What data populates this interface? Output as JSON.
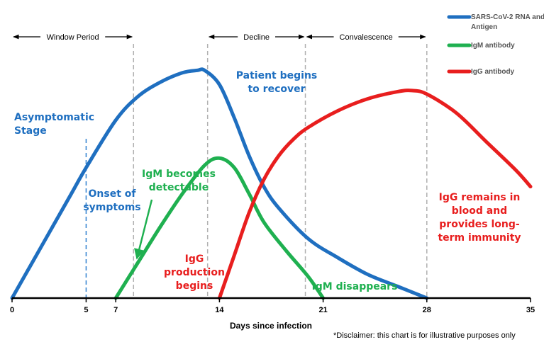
{
  "chart_data": {
    "type": "line",
    "xlabel": "Days since infection",
    "xlim": [
      0,
      35
    ],
    "ylim": [
      0,
      100
    ],
    "xticks": [
      "0",
      "5",
      "7",
      "14",
      "21",
      "28",
      "35"
    ],
    "grid": false,
    "legend_position": "top-right",
    "series": [
      {
        "name": "SARS-CoV-2 RNA and Antigen",
        "color": "#1f6fc0",
        "x": [
          0,
          2,
          4,
          5,
          7,
          8.5,
          10,
          11.5,
          12.5,
          13,
          14,
          15,
          16,
          17,
          18,
          20,
          22,
          24,
          26,
          28
        ],
        "y": [
          0,
          22,
          44,
          55,
          75,
          85,
          91,
          95,
          96,
          96,
          90,
          76,
          60,
          47,
          38,
          25,
          17,
          10,
          5,
          0
        ]
      },
      {
        "name": "IgM antibody",
        "color": "#1fb050",
        "x": [
          7,
          8.5,
          10,
          11.5,
          13,
          14,
          15,
          16,
          17,
          18.5,
          20,
          21
        ],
        "y": [
          0,
          15,
          30,
          44,
          56,
          59,
          55,
          44,
          32,
          20,
          9,
          0
        ]
      },
      {
        "name": "IgG antibody",
        "color": "#e81e1e",
        "x": [
          14,
          15,
          16,
          17,
          18,
          19,
          20,
          22,
          24,
          26,
          27,
          28,
          30,
          32,
          34,
          35
        ],
        "y": [
          0,
          18,
          36,
          50,
          60,
          67,
          72,
          79,
          84,
          87,
          87.5,
          86,
          78,
          66,
          54,
          47
        ]
      }
    ],
    "vlines": [
      {
        "x": 5,
        "color": "#2e7fd0",
        "style": "dashed"
      },
      {
        "x": 8.2,
        "color": "#b0b0b0",
        "style": "dashed"
      },
      {
        "x": 13.2,
        "color": "#b0b0b0",
        "style": "dashed"
      },
      {
        "x": 19.8,
        "color": "#b0b0b0",
        "style": "dashed"
      },
      {
        "x": 28,
        "color": "#b0b0b0",
        "style": "dashed"
      }
    ],
    "periods": [
      {
        "label": "Window Period",
        "x_start": 0,
        "x_end": 8.2
      },
      {
        "label": "Decline",
        "x_start": 13.2,
        "x_end": 19.8
      },
      {
        "label": "Convalescence",
        "x_start": 19.8,
        "x_end": 28
      }
    ],
    "annotations": [
      {
        "lines": [
          "Asymptomatic",
          "Stage"
        ],
        "color": "#1f6fc0"
      },
      {
        "lines": [
          "Onset of",
          "symptoms"
        ],
        "color": "#1f6fc0"
      },
      {
        "lines": [
          "Patient begins",
          "to recover"
        ],
        "color": "#1f6fc0"
      },
      {
        "lines": [
          "IgM becomes",
          "detectable"
        ],
        "color": "#1fb050"
      },
      {
        "lines": [
          "IgG",
          "production",
          "begins"
        ],
        "color": "#e81e1e"
      },
      {
        "lines": [
          "IgM disappears"
        ],
        "color": "#1fb050"
      },
      {
        "lines": [
          "IgG remains in",
          "blood and",
          "provides long-",
          "term immunity"
        ],
        "color": "#e81e1e"
      }
    ]
  },
  "disclaimer": "*Disclaimer: this chart is for illustrative purposes only"
}
